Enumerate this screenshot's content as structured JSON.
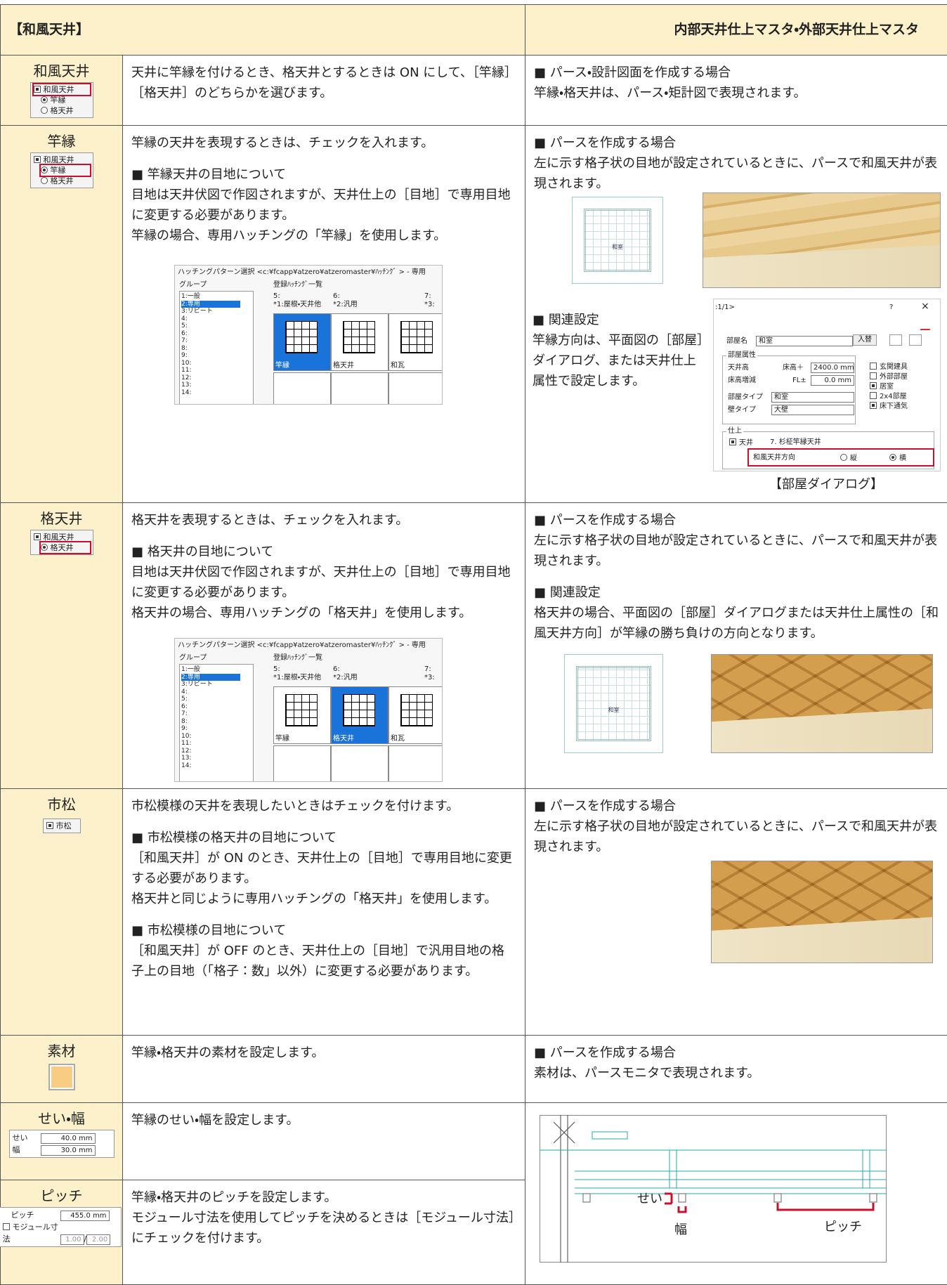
{
  "header": {
    "title": "【和風天井】",
    "subtitle": "内部天井仕上マスタ・外部天井仕上マスタ"
  },
  "hatch_dialog": {
    "title": "ハッチングパターン選択 <c:¥fcapp¥atzero¥atzeromaster¥ﾊｯﾁﾝｸﾞ > - 専用",
    "group_label": "グループ",
    "groups": [
      "1:一般",
      "2:専用",
      "3:リピート",
      "4:",
      "5:",
      "6:",
      "7:",
      "8:",
      "9:",
      "10:",
      "11:",
      "12:",
      "13:",
      "14:"
    ],
    "list_label": "登録ﾊｯﾁﾝｸﾞ一覧",
    "columns": [
      "5:",
      "6:",
      "7:"
    ],
    "column_names": [
      "*1:屋根・天井他",
      "*2:汎用",
      "*3:"
    ],
    "tiles": [
      "竿縁",
      "格天井",
      "和瓦"
    ]
  },
  "rows": [
    {
      "name": "和風天井",
      "widget": [
        "和風天井",
        "竿縁",
        "格天井"
      ],
      "description": [
        [
          "天井に竿縁を付けるとき、格天井とするときは ON にして、［竿縁］［格天井］のどちらかを選びます。"
        ]
      ],
      "notes": [
        [
          "■ パース・設計図面を作成する場合",
          "竿縁・格天井は、パース・矩計図で表現されます。"
        ]
      ]
    },
    {
      "name": "竿縁",
      "widget": [
        "和風天井",
        "竿縁",
        "格天井"
      ],
      "description": [
        [
          "竿縁の天井を表現するときは、チェックを入れます。"
        ],
        [
          "■ 竿縁天井の目地について",
          "目地は天井伏図で作図されますが、天井仕上の［目地］で専用目地に変更する必要があります。",
          "竿縁の場合、専用ハッチングの「竿縁」を使用します。"
        ]
      ],
      "notes": [
        [
          "■ パースを作成する場合",
          "左に示す格子状の目地が設定されているときに、パースで和風天井が表現されます。"
        ]
      ],
      "plan_label": "和室",
      "related": [
        [
          "■ 関連設定",
          "竿縁方向は、平面図の［部屋］ダイアログ、または天井仕上属性で設定します。"
        ]
      ],
      "room_dialog": {
        "page": ":1/1>",
        "help": "?",
        "close": "×",
        "room_name_label": "部屋名",
        "room_name": "和室",
        "swap": "入替",
        "attr_label": "部屋属性",
        "ceiling_height": "天井高",
        "floor_plus": "床高＋",
        "ceiling_value": "2400.0 mm",
        "floor_change": "床高増減",
        "fl": "FL±",
        "floor_value": "0.0 mm",
        "room_type_label": "部屋タイプ",
        "room_type": "和室",
        "wall_type_label": "壁タイプ",
        "wall_type": "大壁",
        "checks": [
          "玄関建具",
          "外部部屋",
          "居室",
          "2x4部屋",
          "床下通気"
        ],
        "finish_label": "仕上",
        "ceiling": "天井",
        "finish": "7. 杉柾竿縁天井",
        "direction_label": "和風天井方向",
        "vertical": "縦",
        "horizontal": "横"
      },
      "caption": "【部屋ダイアログ】"
    },
    {
      "name": "格天井",
      "widget": [
        "和風天井",
        "格天井"
      ],
      "description": [
        [
          "格天井を表現するときは、チェックを入れます。"
        ],
        [
          "■ 格天井の目地について",
          "目地は天井伏図で作図されますが、天井仕上の［目地］で専用目地に変更する必要があります。",
          "格天井の場合、専用ハッチングの「格天井」を使用します。"
        ]
      ],
      "notes": [
        [
          "■ パースを作成する場合",
          "左に示す格子状の目地が設定されているときに、パースで和風天井が表現されます。"
        ],
        [
          "■ 関連設定",
          "格天井の場合、平面図の［部屋］ダイアログまたは天井仕上属性の［和風天井方向］が竿縁の勝ち負けの方向となります。"
        ]
      ],
      "plan_label": "和室"
    },
    {
      "name": "市松",
      "widget": [
        "市松"
      ],
      "description": [
        [
          "市松模様の天井を表現したいときはチェックを付けます。"
        ],
        [
          "■ 市松模様の格天井の目地について",
          "［和風天井］が ON のとき、天井仕上の［目地］で専用目地に変更する必要があります。",
          "格天井と同じように専用ハッチングの「格天井」を使用します。"
        ],
        [
          "■ 市松模様の目地について",
          "［和風天井］が OFF のとき、天井仕上の［目地］で汎用目地の格子上の目地（「格子：数」以外）に変更する必要があります。"
        ]
      ],
      "notes": [
        [
          "■ パースを作成する場合",
          "左に示す格子状の目地が設定されているときに、パースで和風天井が表現されます。"
        ]
      ]
    },
    {
      "name": "素材",
      "description": [
        [
          "竿縁・格天井の素材を設定します。"
        ]
      ],
      "notes": [
        [
          "■ パースを作成する場合",
          "素材は、パースモニタで表現されます。"
        ]
      ]
    },
    {
      "name": "せい・幅",
      "widget": [
        "せい",
        "40.0 mm",
        "幅",
        "30.0 mm"
      ],
      "description": [
        [
          "竿縁のせい・幅を設定します。"
        ]
      ],
      "diagram": [
        "せい",
        "幅",
        "ピッチ"
      ]
    },
    {
      "name": "ピッチ",
      "widget": [
        "ピッチ",
        "455.0 mm",
        "モジュール寸法",
        "1.00",
        "2.00"
      ],
      "description": [
        [
          "竿縁・格天井のピッチを設定します。",
          "モジュール寸法を使用してピッチを決めるときは［モジュール寸法］にチェックを付けます。"
        ]
      ]
    }
  ]
}
